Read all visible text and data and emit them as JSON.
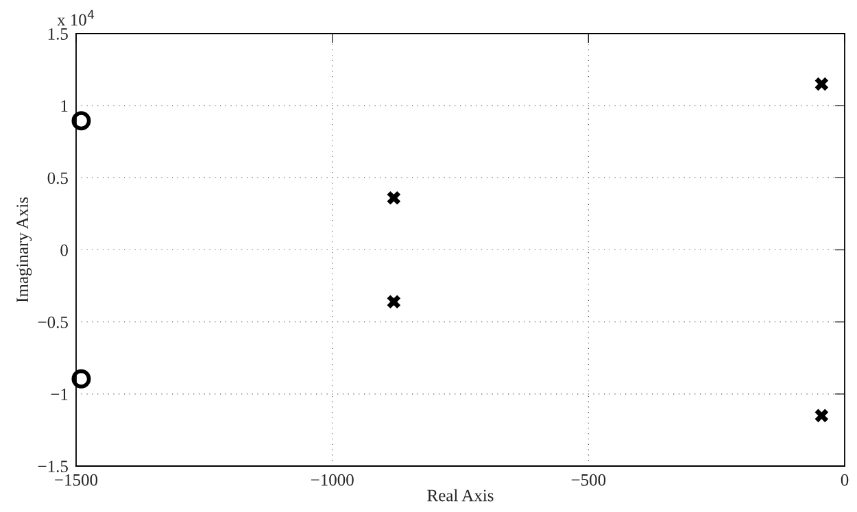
{
  "chart_data": {
    "type": "scatter",
    "xlabel": "Real Axis",
    "ylabel": "Imaginary Axis",
    "annotations": [
      "x 10$^{4}$"
    ],
    "series": [
      {
        "marker": "circle",
        "color": "#000000",
        "x": [
          -1490,
          -1490
        ],
        "values": [
          0.895,
          -0.895
        ]
      },
      {
        "marker": "cross",
        "color": "#000000",
        "x": [
          -880,
          -880,
          -45,
          -45
        ],
        "values": [
          0.36,
          -0.36,
          1.15,
          -1.15
        ]
      }
    ],
    "xlim": [
      -1500,
      0
    ],
    "ylim": [
      -1.5,
      1.5
    ],
    "xticks": [
      {
        "value": -1500,
        "label": "−1500"
      },
      {
        "value": -1000,
        "label": "−1000"
      },
      {
        "value": -500,
        "label": "−500"
      },
      0
    ],
    "yticks": [
      {
        "value": -1.5,
        "label": "−1.5"
      },
      {
        "value": -1,
        "label": "−1"
      },
      {
        "value": -0.5,
        "label": "−0.5"
      },
      0,
      0.5,
      1,
      1.5
    ],
    "grid": true,
    "legend": false
  }
}
